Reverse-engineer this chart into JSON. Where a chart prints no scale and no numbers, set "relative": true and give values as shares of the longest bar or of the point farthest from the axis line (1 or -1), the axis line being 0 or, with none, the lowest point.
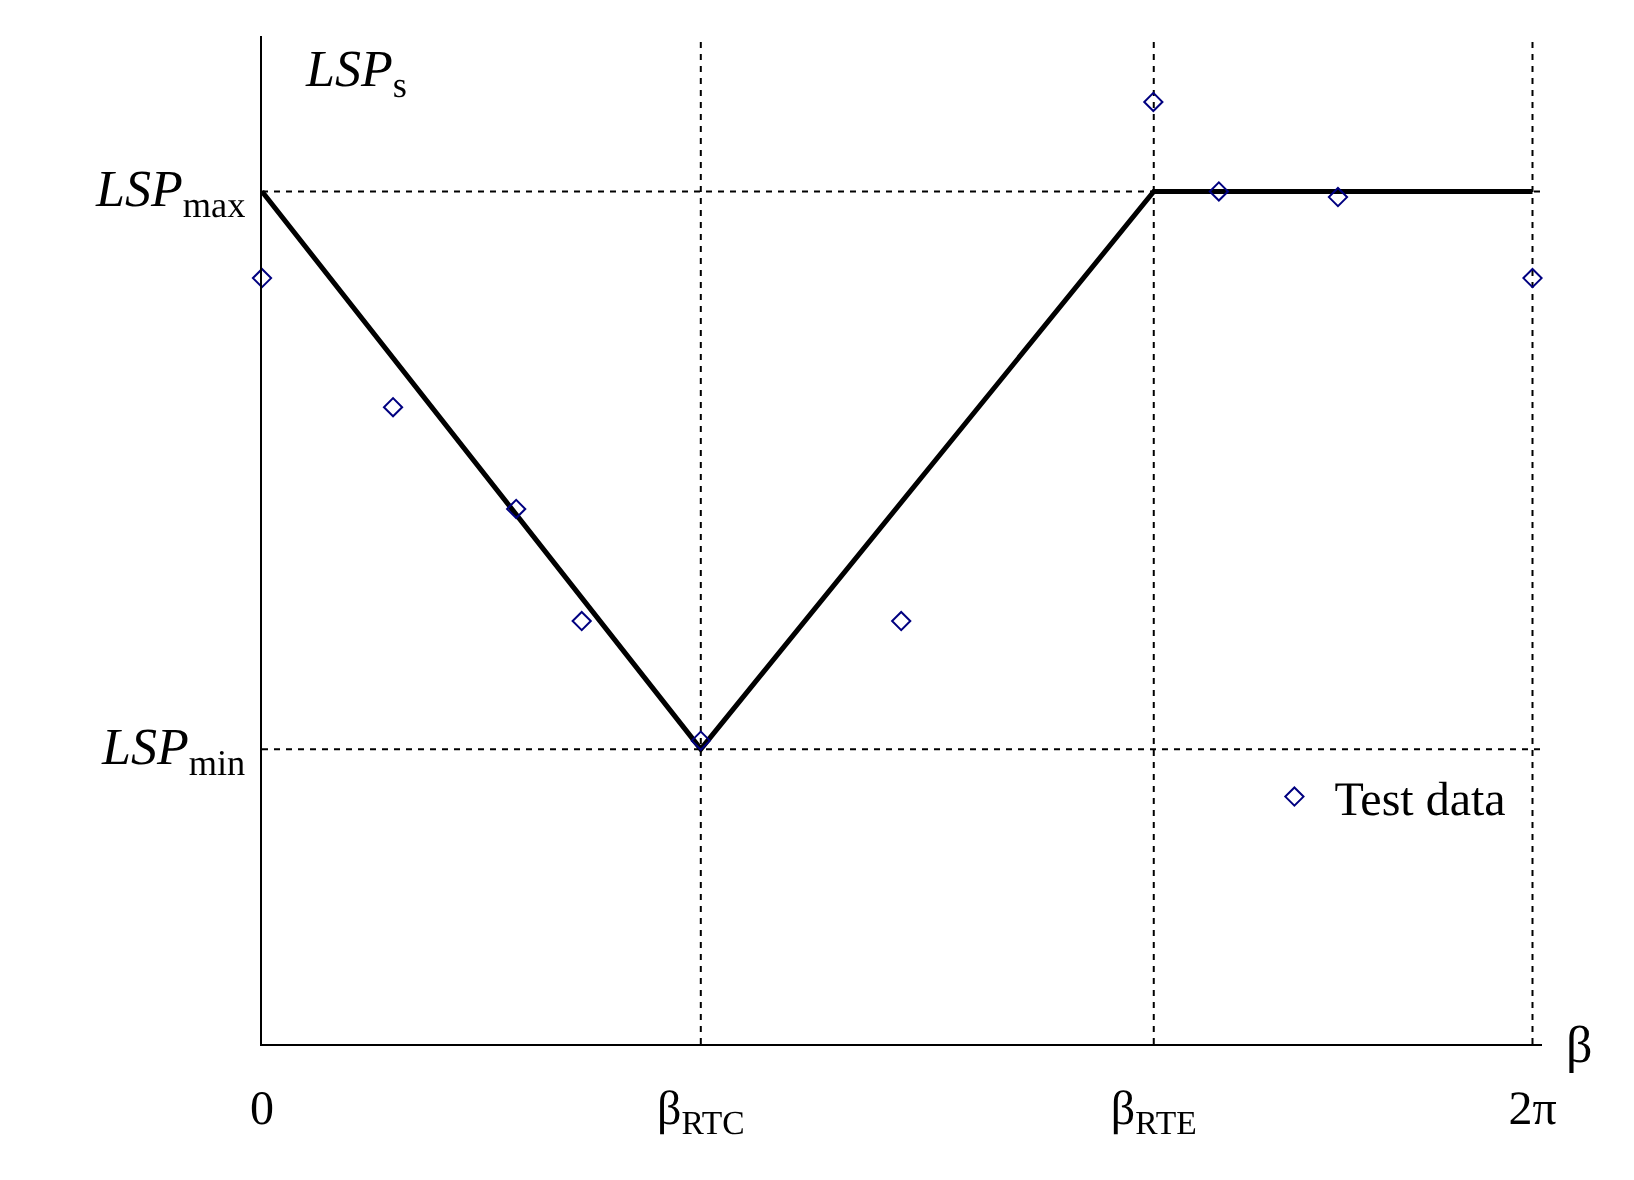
{
  "chart_data": {
    "type": "line",
    "relative": true,
    "ylabel": "LSP$_{s}$",
    "xlabel": "β",
    "xlim": [
      0,
      6.33
    ],
    "xticks": [
      {
        "value": 0,
        "label": "0"
      },
      {
        "value": 2.17,
        "label": "β$_{RTC}$"
      },
      {
        "value": 4.41,
        "label": "β$_{RTE}$"
      },
      {
        "value": 6.283,
        "label": "2π"
      }
    ],
    "x": [
      0,
      2.17,
      4.41,
      6.283
    ],
    "series": [
      {
        "color": "#000000",
        "values": [
          0.905,
          0.313,
          0.905,
          0.905
        ],
        "marker": "none",
        "line_style": "solid"
      },
      {
        "type": "scatter",
        "name": "Test data",
        "color": "#000080",
        "marker": "diamond",
        "x": [
          0,
          0.648,
          1.257,
          1.581,
          2.17,
          3.161,
          4.408,
          4.732,
          5.321,
          6.283
        ],
        "values": [
          0.813,
          0.676,
          0.568,
          0.449,
          0.322,
          0.449,
          1.0,
          0.905,
          0.899,
          0.813
        ]
      }
    ],
    "ref_lines": [
      {
        "axis": "y",
        "value": 0.905,
        "label": "LSP$_{max}$",
        "color": "#000000",
        "line_style": "dotted"
      },
      {
        "axis": "y",
        "value": 0.313,
        "label": "LSP$_{min}$",
        "color": "#000000",
        "line_style": "dotted"
      },
      {
        "axis": "x",
        "value": 2.17,
        "color": "#000000",
        "line_style": "dotted"
      },
      {
        "axis": "x",
        "value": 4.41,
        "color": "#000000",
        "line_style": "dotted"
      },
      {
        "axis": "x",
        "value": 6.283,
        "color": "#000000",
        "line_style": "dotted"
      }
    ],
    "legend": "bottom right",
    "grid": false
  }
}
